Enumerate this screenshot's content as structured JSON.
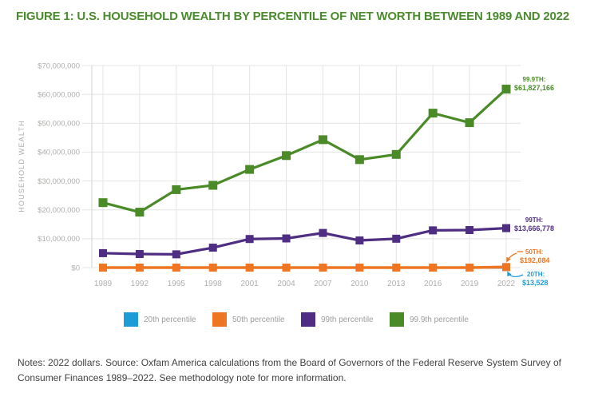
{
  "title": "FIGURE 1: U.S. HOUSEHOLD WEALTH BY PERCENTILE OF NET WORTH BETWEEN 1989 AND 2022",
  "notes": "Notes: 2022 dollars. Source: Oxfam America calculations from the Board of Governors of the Federal Reserve System Survey of Consumer Finances 1989–2022. See methodology note for more information.",
  "colors": {
    "title_green": "#4a8b2c",
    "grid": "#e4e4e2",
    "axis_line": "#d2d2d0",
    "axis_text": "#aeaeac",
    "legend_text": "#9d9d9b",
    "notes_text": "#414141"
  },
  "chart_data": {
    "type": "line",
    "title": "U.S. household wealth by percentile of net worth between 1989 and 2022",
    "x": [
      "1989",
      "1992",
      "1995",
      "1998",
      "2001",
      "2004",
      "2007",
      "2010",
      "2013",
      "2016",
      "2019",
      "2022"
    ],
    "xlabel": "",
    "ylabel": "HOUSEHOLD WEALTH",
    "ylim": [
      0,
      70000000
    ],
    "ytick_interval": 10000000,
    "ytick_labels": [
      "$0",
      "$10,000,000",
      "$20,000,000",
      "$30,000,000",
      "$40,000,000",
      "$50,000,000",
      "$60,000,000",
      "$70,000,000"
    ],
    "grid": true,
    "legend_position": "bottom",
    "series": [
      {
        "name": "20th percentile",
        "color": "#1d9cd6",
        "values": [
          0,
          0,
          0,
          0,
          0,
          0,
          0,
          0,
          0,
          0,
          0,
          13528
        ],
        "end_label": [
          "20TH:",
          "$13,528"
        ]
      },
      {
        "name": "50th percentile",
        "color": "#ee7623",
        "values": [
          0,
          0,
          0,
          0,
          0,
          0,
          0,
          0,
          0,
          0,
          0,
          192084
        ],
        "end_label": [
          "50TH:",
          "$192,084"
        ]
      },
      {
        "name": "99th percentile",
        "color": "#4f2d82",
        "values": [
          5000000,
          4700000,
          4600000,
          6900000,
          9900000,
          10100000,
          12000000,
          9400000,
          10000000,
          12900000,
          13000000,
          13666778
        ],
        "end_label": [
          "99TH:",
          "$13,666,778"
        ]
      },
      {
        "name": "99.9th percentile",
        "color": "#4a8b28",
        "values": [
          22500000,
          19200000,
          27000000,
          28500000,
          34000000,
          38800000,
          44300000,
          37400000,
          39200000,
          53500000,
          50200000,
          61827166
        ],
        "end_label": [
          "99.9TH:",
          "$61,827,166"
        ]
      }
    ]
  }
}
